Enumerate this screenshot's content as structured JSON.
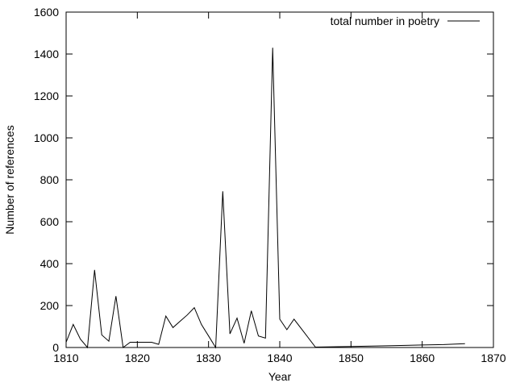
{
  "chart_data": {
    "type": "line",
    "title": "",
    "xlabel": "Year",
    "ylabel": "Number of references",
    "xlim": [
      1810,
      1870
    ],
    "ylim": [
      0,
      1600
    ],
    "xticks": [
      1810,
      1820,
      1830,
      1840,
      1850,
      1860,
      1870
    ],
    "yticks": [
      0,
      200,
      400,
      600,
      800,
      1000,
      1200,
      1400,
      1600
    ],
    "grid": false,
    "legend_position": "top-right",
    "series": [
      {
        "name": "total number in poetry",
        "color": "#000000",
        "x": [
          1810,
          1811,
          1812,
          1813,
          1814,
          1815,
          1816,
          1817,
          1818,
          1819,
          1820,
          1821,
          1822,
          1823,
          1824,
          1825,
          1826,
          1827,
          1828,
          1829,
          1830,
          1831,
          1832,
          1833,
          1834,
          1835,
          1836,
          1837,
          1838,
          1839,
          1840,
          1841,
          1842,
          1845,
          1850,
          1855,
          1860,
          1863,
          1866
        ],
        "y": [
          25,
          110,
          40,
          0,
          370,
          60,
          30,
          245,
          0,
          25,
          25,
          25,
          25,
          15,
          150,
          95,
          125,
          155,
          190,
          110,
          55,
          0,
          745,
          65,
          140,
          20,
          175,
          55,
          45,
          1430,
          135,
          85,
          135,
          2,
          5,
          8,
          12,
          14,
          18
        ]
      }
    ]
  }
}
